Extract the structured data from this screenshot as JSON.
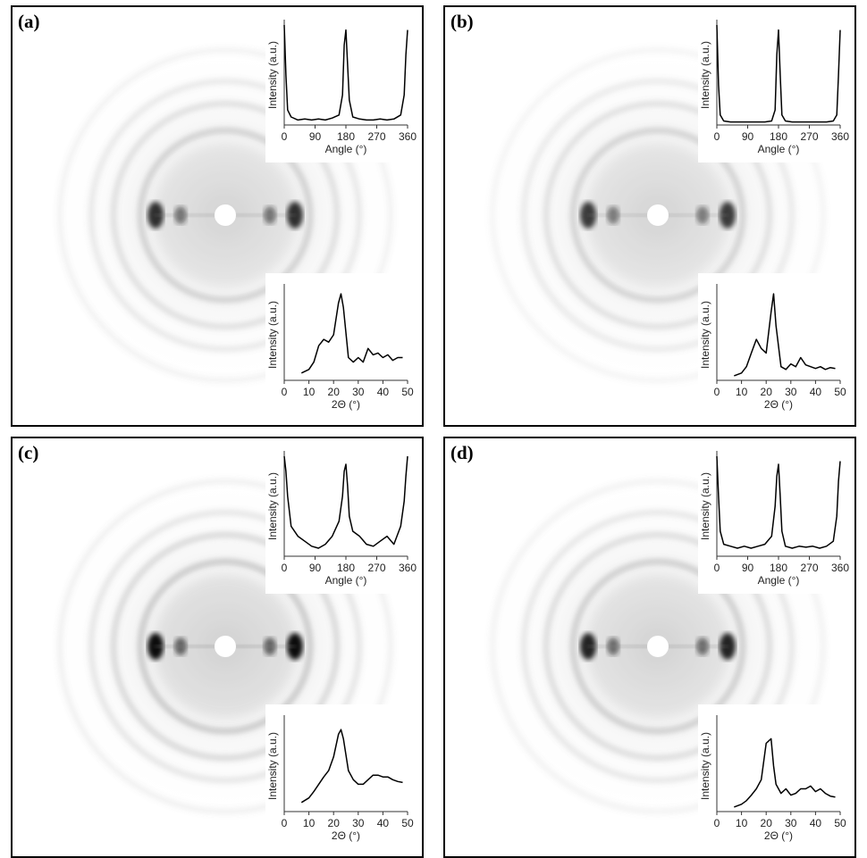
{
  "chart_data": [
    {
      "type": "line",
      "title": "(a)",
      "xlabel": "Angle (°)",
      "ylabel": "Intensity (a.u.)",
      "color": "#000000",
      "x": [
        0,
        5,
        10,
        20,
        40,
        60,
        80,
        100,
        120,
        140,
        160,
        170,
        175,
        180,
        185,
        190,
        200,
        220,
        240,
        260,
        280,
        300,
        320,
        340,
        350,
        355,
        360
      ],
      "values": [
        1.0,
        0.5,
        0.15,
        0.08,
        0.05,
        0.06,
        0.05,
        0.06,
        0.05,
        0.07,
        0.1,
        0.3,
        0.8,
        0.95,
        0.6,
        0.25,
        0.08,
        0.06,
        0.05,
        0.05,
        0.06,
        0.05,
        0.06,
        0.1,
        0.3,
        0.7,
        0.95
      ],
      "xlim": [
        0,
        360
      ],
      "xticks": [
        0,
        90,
        180,
        270,
        360
      ],
      "ylim": [
        0,
        1
      ]
    },
    {
      "type": "line",
      "xlabel": "2Θ (°)",
      "ylabel": "Intensity (a.u.)",
      "color": "#000000",
      "x": [
        7,
        10,
        12,
        14,
        16,
        18,
        20,
        22,
        23,
        24,
        26,
        28,
        30,
        32,
        34,
        36,
        38,
        40,
        42,
        44,
        46,
        48
      ],
      "values": [
        0.08,
        0.12,
        0.2,
        0.38,
        0.45,
        0.42,
        0.5,
        0.85,
        0.95,
        0.8,
        0.25,
        0.2,
        0.25,
        0.2,
        0.35,
        0.28,
        0.3,
        0.25,
        0.28,
        0.22,
        0.25,
        0.25
      ],
      "xlim": [
        0,
        50
      ],
      "xticks": [
        0,
        10,
        20,
        30,
        40,
        50
      ],
      "ylim": [
        0,
        1
      ]
    },
    {
      "type": "line",
      "title": "(b)",
      "xlabel": "Angle (°)",
      "ylabel": "Intensity (a.u.)",
      "color": "#000000",
      "x": [
        0,
        5,
        10,
        20,
        40,
        60,
        80,
        100,
        120,
        140,
        160,
        170,
        175,
        180,
        185,
        190,
        200,
        220,
        240,
        260,
        280,
        300,
        320,
        340,
        350,
        355,
        360
      ],
      "values": [
        1.0,
        0.4,
        0.1,
        0.04,
        0.03,
        0.03,
        0.03,
        0.03,
        0.03,
        0.03,
        0.04,
        0.15,
        0.7,
        0.95,
        0.5,
        0.1,
        0.04,
        0.03,
        0.03,
        0.03,
        0.03,
        0.03,
        0.03,
        0.04,
        0.1,
        0.5,
        0.95
      ],
      "xlim": [
        0,
        360
      ],
      "xticks": [
        0,
        90,
        180,
        270,
        360
      ],
      "ylim": [
        0,
        1
      ]
    },
    {
      "type": "line",
      "xlabel": "2Θ (°)",
      "ylabel": "Intensity (a.u.)",
      "color": "#000000",
      "x": [
        7,
        10,
        12,
        14,
        16,
        18,
        20,
        22,
        23,
        24,
        26,
        28,
        30,
        32,
        34,
        36,
        38,
        40,
        42,
        44,
        46,
        48
      ],
      "values": [
        0.05,
        0.08,
        0.15,
        0.3,
        0.45,
        0.35,
        0.3,
        0.75,
        0.95,
        0.6,
        0.15,
        0.12,
        0.18,
        0.15,
        0.25,
        0.17,
        0.15,
        0.13,
        0.15,
        0.12,
        0.14,
        0.13
      ],
      "xlim": [
        0,
        50
      ],
      "xticks": [
        0,
        10,
        20,
        30,
        40,
        50
      ],
      "ylim": [
        0,
        1
      ]
    },
    {
      "type": "line",
      "title": "(c)",
      "xlabel": "Angle (°)",
      "ylabel": "Intensity (a.u.)",
      "color": "#000000",
      "x": [
        0,
        5,
        10,
        20,
        40,
        60,
        80,
        100,
        120,
        140,
        160,
        170,
        175,
        180,
        185,
        190,
        200,
        220,
        240,
        260,
        280,
        300,
        320,
        340,
        350,
        355,
        360
      ],
      "values": [
        1.0,
        0.85,
        0.6,
        0.3,
        0.2,
        0.15,
        0.1,
        0.08,
        0.12,
        0.2,
        0.35,
        0.6,
        0.85,
        0.92,
        0.7,
        0.4,
        0.25,
        0.2,
        0.12,
        0.1,
        0.15,
        0.2,
        0.12,
        0.3,
        0.55,
        0.8,
        1.0
      ],
      "xlim": [
        0,
        360
      ],
      "xticks": [
        0,
        90,
        180,
        270,
        360
      ],
      "ylim": [
        0,
        1
      ]
    },
    {
      "type": "line",
      "xlabel": "2Θ (°)",
      "ylabel": "Intensity (a.u.)",
      "color": "#000000",
      "x": [
        7,
        10,
        12,
        14,
        16,
        18,
        20,
        22,
        23,
        24,
        26,
        28,
        30,
        32,
        34,
        36,
        38,
        40,
        42,
        44,
        46,
        48
      ],
      "values": [
        0.1,
        0.15,
        0.22,
        0.3,
        0.38,
        0.45,
        0.6,
        0.85,
        0.9,
        0.8,
        0.45,
        0.35,
        0.3,
        0.3,
        0.35,
        0.4,
        0.4,
        0.38,
        0.38,
        0.35,
        0.33,
        0.32
      ],
      "xlim": [
        0,
        50
      ],
      "xticks": [
        0,
        10,
        20,
        30,
        40,
        50
      ],
      "ylim": [
        0,
        1
      ]
    },
    {
      "type": "line",
      "title": "(d)",
      "xlabel": "Angle (°)",
      "ylabel": "Intensity (a.u.)",
      "color": "#000000",
      "x": [
        0,
        5,
        10,
        20,
        40,
        60,
        80,
        100,
        120,
        140,
        160,
        170,
        175,
        180,
        185,
        190,
        200,
        220,
        240,
        260,
        280,
        300,
        320,
        340,
        350,
        355,
        360
      ],
      "values": [
        1.0,
        0.6,
        0.25,
        0.12,
        0.1,
        0.08,
        0.1,
        0.08,
        0.1,
        0.12,
        0.2,
        0.5,
        0.8,
        0.92,
        0.6,
        0.25,
        0.1,
        0.08,
        0.1,
        0.09,
        0.1,
        0.08,
        0.1,
        0.15,
        0.4,
        0.75,
        0.95
      ],
      "xlim": [
        0,
        360
      ],
      "xticks": [
        0,
        90,
        180,
        270,
        360
      ],
      "ylim": [
        0,
        1
      ]
    },
    {
      "type": "line",
      "xlabel": "2Θ (°)",
      "ylabel": "Intensity (a.u.)",
      "color": "#000000",
      "x": [
        7,
        10,
        12,
        14,
        16,
        18,
        20,
        22,
        23,
        24,
        26,
        28,
        30,
        32,
        34,
        36,
        38,
        40,
        42,
        44,
        46,
        48
      ],
      "values": [
        0.05,
        0.08,
        0.12,
        0.18,
        0.25,
        0.35,
        0.75,
        0.8,
        0.5,
        0.3,
        0.2,
        0.25,
        0.18,
        0.2,
        0.25,
        0.25,
        0.28,
        0.22,
        0.25,
        0.2,
        0.17,
        0.16
      ],
      "xlim": [
        0,
        50
      ],
      "xticks": [
        0,
        10,
        20,
        30,
        40,
        50
      ],
      "ylim": [
        0,
        1
      ]
    }
  ]
}
